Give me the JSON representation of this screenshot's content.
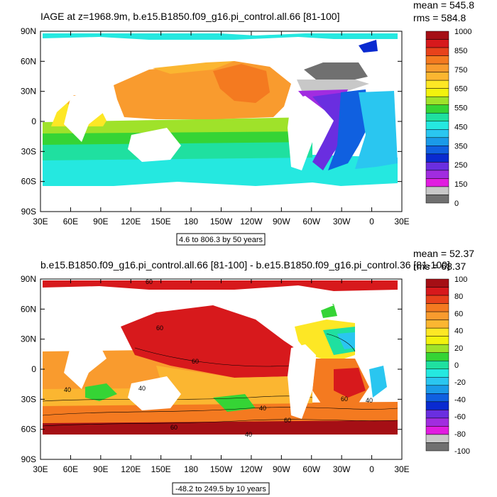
{
  "panels": [
    {
      "title": "IAGE at z=1968.9m, b.e15.B1850.f09_g16.pi_control.all.66 [81-100]",
      "stats": {
        "mean": "mean = 545.8",
        "rms": "rms = 584.8"
      },
      "range_label": "4.6 to 806.3 by 50 years",
      "colorbar": {
        "labels": [
          "1000",
          "850",
          "750",
          "650",
          "550",
          "450",
          "350",
          "250",
          "150",
          "0"
        ],
        "colors": [
          "#a50f15",
          "#d7191c",
          "#e8421b",
          "#f47a20",
          "#f99b2e",
          "#fbb631",
          "#fde725",
          "#f2f20d",
          "#9fe22a",
          "#35d435",
          "#1fe0a0",
          "#25e8e0",
          "#2ac6f0",
          "#1a9ae8",
          "#1060e0",
          "#0a2ad0",
          "#6a2ee0",
          "#a12ce0",
          "#e11ce0",
          "#c8c8c8",
          "#707070"
        ]
      },
      "lon_ticks": [
        "30E",
        "60E",
        "90E",
        "120E",
        "150E",
        "180",
        "150W",
        "120W",
        "90W",
        "60W",
        "30W",
        "0",
        "30E"
      ],
      "lat_ticks": [
        "90N",
        "60N",
        "30N",
        "0",
        "30S",
        "60S",
        "90S"
      ]
    },
    {
      "title": "b.e15.B1850.f09_g16.pi_control.all.66 [81-100] - b.e15.B1850.f09_g16.pi_control.36 [81-100]",
      "stats": {
        "mean": "mean = 52.37",
        "rms": "rms = 68.37"
      },
      "range_label": "-48.2 to 249.5 by 10 years",
      "colorbar": {
        "labels": [
          "100",
          "80",
          "60",
          "40",
          "20",
          "0",
          "-20",
          "-40",
          "-60",
          "-80",
          "-100"
        ],
        "colors": [
          "#a50f15",
          "#d7191c",
          "#e8421b",
          "#f47a20",
          "#f99b2e",
          "#fbb631",
          "#fde725",
          "#f2f20d",
          "#9fe22a",
          "#35d435",
          "#1fe0a0",
          "#25e8e0",
          "#2ac6f0",
          "#1a9ae8",
          "#1060e0",
          "#0a2ad0",
          "#6a2ee0",
          "#a12ce0",
          "#e11ce0",
          "#c8c8c8",
          "#707070"
        ]
      },
      "contour_labels": [
        "60",
        "60",
        "60",
        "40",
        "40",
        "40",
        "60",
        "60",
        "40",
        "60",
        "40"
      ],
      "lon_ticks": [
        "30E",
        "60E",
        "90E",
        "120E",
        "150E",
        "180",
        "150W",
        "120W",
        "90W",
        "60W",
        "30W",
        "0",
        "30E"
      ],
      "lat_ticks": [
        "90N",
        "60N",
        "30N",
        "0",
        "30S",
        "60S",
        "90S"
      ]
    }
  ],
  "chart_data": [
    {
      "type": "heatmap",
      "title": "IAGE at z=1968.9m, b.e15.B1850.f09_g16.pi_control.all.66 [81-100]",
      "x_ticks": [
        "30E",
        "60E",
        "90E",
        "120E",
        "150E",
        "180",
        "150W",
        "120W",
        "90W",
        "60W",
        "30W",
        "0",
        "30E"
      ],
      "y_ticks": [
        "90N",
        "60N",
        "30N",
        "0",
        "30S",
        "60S",
        "90S"
      ],
      "colorbar_labels": [
        1000,
        850,
        750,
        650,
        550,
        450,
        350,
        250,
        150,
        0
      ],
      "mean": 545.8,
      "rms": 584.8,
      "range": [
        4.6,
        806.3
      ],
      "contour_interval": 50
    },
    {
      "type": "heatmap",
      "title": "b.e15.B1850.f09_g16.pi_control.all.66 [81-100] - b.e15.B1850.f09_g16.pi_control.36 [81-100]",
      "x_ticks": [
        "30E",
        "60E",
        "90E",
        "120E",
        "150E",
        "180",
        "150W",
        "120W",
        "90W",
        "60W",
        "30W",
        "0",
        "30E"
      ],
      "y_ticks": [
        "90N",
        "60N",
        "30N",
        "0",
        "30S",
        "60S",
        "90S"
      ],
      "colorbar_labels": [
        100,
        80,
        60,
        40,
        20,
        0,
        -20,
        -40,
        -60,
        -80,
        -100
      ],
      "mean": 52.37,
      "rms": 68.37,
      "range": [
        -48.2,
        249.5
      ],
      "contour_interval": 10
    }
  ]
}
